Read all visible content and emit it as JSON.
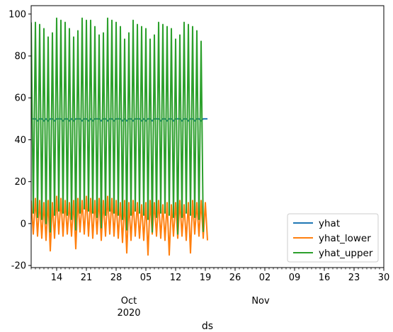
{
  "chart_data": {
    "type": "line",
    "title": "",
    "xlabel": "ds",
    "ylabel": "",
    "x_range": [
      "2020-09-08",
      "2020-11-30"
    ],
    "ylim": [
      -21,
      104
    ],
    "y_ticks": [
      -20,
      0,
      20,
      40,
      60,
      80,
      100
    ],
    "x_major_ticks": [
      {
        "date": "2020-09-14",
        "label": "14"
      },
      {
        "date": "2020-09-21",
        "label": "21"
      },
      {
        "date": "2020-09-28",
        "label": "28"
      },
      {
        "date": "2020-10-05",
        "label": "05"
      },
      {
        "date": "2020-10-12",
        "label": "12"
      },
      {
        "date": "2020-10-19",
        "label": "19"
      },
      {
        "date": "2020-10-26",
        "label": "26"
      },
      {
        "date": "2020-11-02",
        "label": "02"
      },
      {
        "date": "2020-11-09",
        "label": "09"
      },
      {
        "date": "2020-11-16",
        "label": "16"
      },
      {
        "date": "2020-11-23",
        "label": "23"
      },
      {
        "date": "2020-11-30",
        "label": "30"
      }
    ],
    "x_month_labels": [
      {
        "date": "2020-10-01",
        "label": "Oct",
        "year": "2020"
      },
      {
        "date": "2020-11-01",
        "label": "Nov",
        "year": ""
      }
    ],
    "grid": false,
    "legend_position": "lower-right",
    "series": [
      {
        "name": "yhat",
        "color": "#1f77b4",
        "daily_low": 3,
        "daily_high": 50,
        "values": [
          50,
          50,
          50,
          49,
          50,
          50,
          49,
          50,
          49,
          50,
          50,
          49,
          50,
          50,
          50,
          49,
          50,
          50,
          49,
          50,
          49,
          50,
          50,
          50,
          49,
          50,
          50,
          49,
          50,
          49,
          50,
          50,
          50,
          49,
          50,
          50,
          49,
          50,
          50,
          49,
          50,
          50,
          50,
          49,
          50,
          49,
          50,
          50,
          49,
          50,
          50,
          50,
          49,
          50,
          49,
          50,
          50,
          49,
          50,
          50,
          50,
          49,
          50,
          50,
          49,
          50,
          50,
          49,
          50,
          50,
          50,
          49,
          50,
          50,
          49,
          50,
          50,
          49,
          50,
          50,
          49,
          50,
          50,
          50
        ]
      },
      {
        "name": "yhat_lower",
        "color": "#ff7f0e",
        "values": [
          11,
          -5,
          12,
          -6,
          11,
          -7,
          10,
          -8,
          11,
          -13,
          10,
          -7,
          13,
          -5,
          12,
          -6,
          11,
          -5,
          10,
          -6,
          11,
          -12,
          12,
          -4,
          11,
          -5,
          13,
          -6,
          12,
          -7,
          11,
          -5,
          12,
          -8,
          11,
          -6,
          13,
          -5,
          12,
          -6,
          11,
          -7,
          10,
          -9,
          11,
          -14,
          10,
          -8,
          11,
          -6,
          10,
          -7,
          9,
          -8,
          10,
          -15,
          11,
          -5,
          10,
          -6,
          11,
          -7,
          9,
          -8,
          10,
          -15,
          9,
          -6,
          10,
          -7,
          11,
          -6,
          9,
          -8,
          10,
          -14,
          11,
          -5,
          10,
          -6,
          11,
          -7,
          10,
          -8
        ]
      },
      {
        "name": "yhat_upper",
        "color": "#2ca02c",
        "values": [
          96,
          5,
          96,
          3,
          95,
          2,
          93,
          0,
          89,
          -4,
          91,
          4,
          98,
          6,
          97,
          5,
          96,
          4,
          93,
          2,
          89,
          -3,
          92,
          5,
          98,
          7,
          97,
          6,
          97,
          5,
          94,
          3,
          90,
          -2,
          91,
          4,
          98,
          6,
          97,
          5,
          96,
          4,
          94,
          2,
          88,
          -3,
          91,
          4,
          97,
          6,
          95,
          5,
          94,
          4,
          93,
          2,
          88,
          -4,
          90,
          3,
          96,
          5,
          95,
          5,
          94,
          4,
          93,
          3,
          88,
          -5,
          90,
          3,
          96,
          5,
          95,
          4,
          94,
          3,
          92,
          2,
          87,
          -4
        ]
      }
    ]
  }
}
